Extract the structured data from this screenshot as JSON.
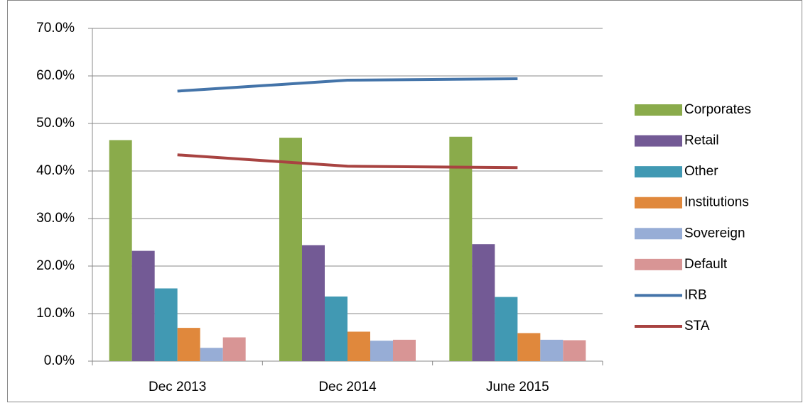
{
  "chart_data": {
    "type": "bar",
    "categories": [
      "Dec 2013",
      "Dec 2014",
      "June 2015"
    ],
    "series": [
      {
        "name": "Corporates",
        "color": "#8aab4b",
        "values": [
          46.5,
          47.0,
          47.2
        ]
      },
      {
        "name": "Retail",
        "color": "#735a95",
        "values": [
          23.2,
          24.4,
          24.6
        ]
      },
      {
        "name": "Other",
        "color": "#4199b3",
        "values": [
          15.3,
          13.6,
          13.5
        ]
      },
      {
        "name": "Institutions",
        "color": "#e0883c",
        "values": [
          7.0,
          6.2,
          5.9
        ]
      },
      {
        "name": "Sovereign",
        "color": "#97add6",
        "values": [
          2.8,
          4.3,
          4.5
        ]
      },
      {
        "name": "Default",
        "color": "#d89595",
        "values": [
          5.0,
          4.5,
          4.4
        ]
      },
      {
        "name": "IRB",
        "color": "#4474a9",
        "type": "line",
        "values": [
          56.8,
          59.1,
          59.4
        ]
      },
      {
        "name": "STA",
        "color": "#a84341",
        "type": "line",
        "values": [
          43.4,
          41.0,
          40.7
        ]
      }
    ],
    "ylim": [
      0,
      70
    ],
    "yticks": [
      {
        "value": 0,
        "label": "0.0%"
      },
      {
        "value": 10,
        "label": "10.0%"
      },
      {
        "value": 20,
        "label": "20.0%"
      },
      {
        "value": 30,
        "label": "30.0%"
      },
      {
        "value": 40,
        "label": "40.0%"
      },
      {
        "value": 50,
        "label": "50.0%"
      },
      {
        "value": 60,
        "label": "60.0%"
      },
      {
        "value": 70,
        "label": "70.0%"
      }
    ],
    "grid": true,
    "legend": "right"
  }
}
